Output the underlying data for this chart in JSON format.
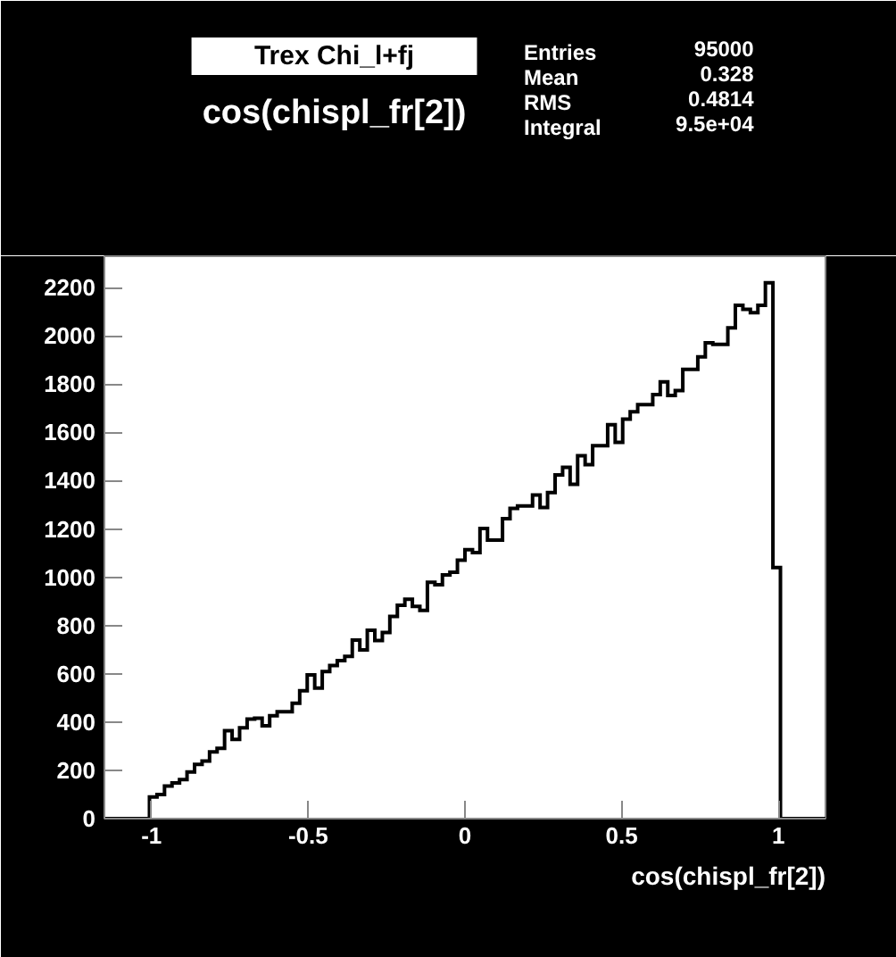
{
  "chart_data": {
    "type": "histogram",
    "title": "Trex Chi_l+fj",
    "subtitle": "cos(chispl_fr[2])",
    "xlabel": "cos(chispl_fr[2])",
    "annotations": [
      "Entries 95000",
      "Mean 0.328",
      "RMS 0.4814",
      "Integral 9.5e+04"
    ],
    "color": "#000000",
    "bins": [
      -1.15,
      -1.126,
      -1.1021,
      -1.0781,
      -1.0542,
      -1.0302,
      -1.0063,
      -0.9823,
      -0.9583,
      -0.9344,
      -0.9104,
      -0.8865,
      -0.8625,
      -0.8385,
      -0.8146,
      -0.7906,
      -0.7667,
      -0.7427,
      -0.7188,
      -0.6948,
      -0.6708,
      -0.6469,
      -0.6229,
      -0.599,
      -0.575,
      -0.551,
      -0.5271,
      -0.5031,
      -0.4792,
      -0.4552,
      -0.4313,
      -0.4073,
      -0.3833,
      -0.3594,
      -0.3354,
      -0.3115,
      -0.2875,
      -0.2635,
      -0.2396,
      -0.2156,
      -0.1917,
      -0.1677,
      -0.1438,
      -0.1198,
      -0.0958,
      -0.0719,
      -0.0479,
      -0.024,
      0,
      0.024,
      0.0479,
      0.0719,
      0.0958,
      0.1198,
      0.1438,
      0.1677,
      0.1917,
      0.2156,
      0.2396,
      0.2635,
      0.2875,
      0.3115,
      0.3354,
      0.3594,
      0.3833,
      0.4073,
      0.4313,
      0.4552,
      0.4792,
      0.5031,
      0.5271,
      0.551,
      0.575,
      0.599,
      0.6229,
      0.6469,
      0.6708,
      0.6948,
      0.7188,
      0.7427,
      0.7667,
      0.7906,
      0.8146,
      0.8385,
      0.8625,
      0.8865,
      0.9104,
      0.9344,
      0.9583,
      0.9823,
      1.0063,
      1.0302,
      1.0542,
      1.0781,
      1.1021,
      1.126,
      1.15
    ],
    "values": [
      0,
      0,
      0,
      0,
      0,
      0,
      90,
      100,
      135,
      148,
      162,
      193,
      225,
      239,
      276,
      291,
      364,
      328,
      376,
      412,
      416,
      385,
      426,
      443,
      443,
      478,
      530,
      595,
      541,
      609,
      634,
      655,
      672,
      740,
      699,
      780,
      738,
      771,
      838,
      884,
      909,
      879,
      863,
      979,
      969,
      1010,
      1021,
      1071,
      1114,
      1102,
      1202,
      1154,
      1154,
      1243,
      1285,
      1295,
      1295,
      1341,
      1289,
      1351,
      1424,
      1455,
      1385,
      1503,
      1466,
      1545,
      1545,
      1632,
      1559,
      1655,
      1686,
      1715,
      1715,
      1757,
      1809,
      1753,
      1773,
      1861,
      1861,
      1913,
      1971,
      1965,
      1965,
      2033,
      2127,
      2110,
      2096,
      2127,
      2220,
      1040,
      0,
      0,
      0,
      0,
      0,
      0
    ],
    "xlim": [
      -1.15,
      1.15
    ],
    "ylim": [
      0,
      2330
    ],
    "xticks": [
      -1,
      -0.5,
      0,
      0.5,
      1
    ],
    "yticks": [
      0,
      200,
      400,
      600,
      800,
      1000,
      1200,
      1400,
      1600,
      1800,
      2000,
      2200
    ],
    "grid": false
  }
}
